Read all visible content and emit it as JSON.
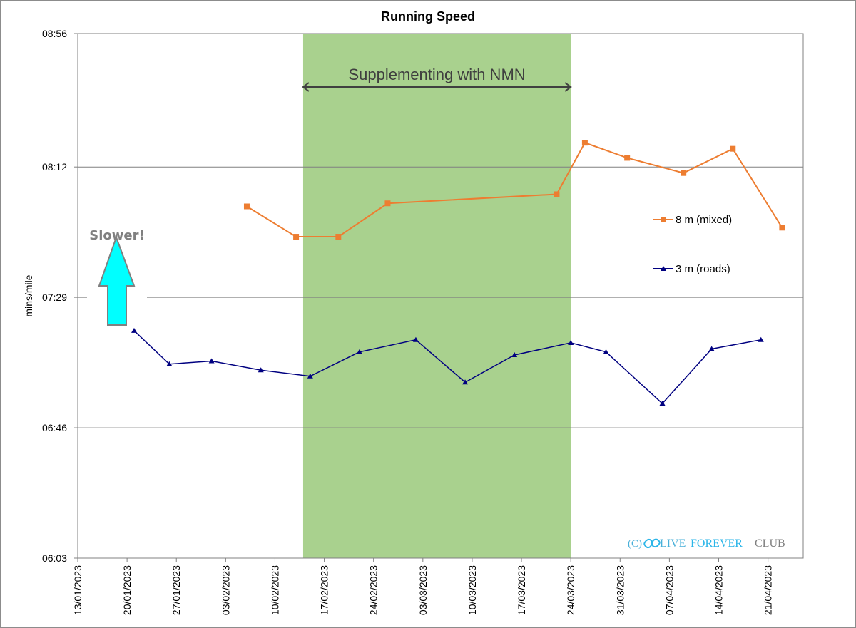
{
  "chart_data": {
    "type": "line",
    "title": "Running Speed",
    "ylabel": "mins/mile",
    "xlabel": "",
    "y_ticks": [
      "06:03",
      "06:46",
      "07:29",
      "08:12",
      "08:56"
    ],
    "ylim_seconds": [
      363,
      536
    ],
    "x_ticks": [
      "13/01/2023",
      "20/01/2023",
      "27/01/2023",
      "03/02/2023",
      "10/02/2023",
      "17/02/2023",
      "24/02/2023",
      "03/03/2023",
      "10/03/2023",
      "17/03/2023",
      "24/03/2023",
      "31/03/2023",
      "07/04/2023",
      "14/04/2023",
      "21/04/2023"
    ],
    "xlim": [
      "13/01/2023",
      "26/04/2023"
    ],
    "grid": "horizontal",
    "legend_position": "right",
    "shaded_region": {
      "start": "14/02/2023",
      "end": "24/03/2023",
      "label": "Supplementing with NMN",
      "color": "#a9d18e"
    },
    "series": [
      {
        "name": "8 m (mixed)",
        "color": "#ed7d31",
        "marker": "square",
        "points": [
          {
            "x": "06/02/2023",
            "y": "07:59"
          },
          {
            "x": "13/02/2023",
            "y": "07:49"
          },
          {
            "x": "19/02/2023",
            "y": "07:49"
          },
          {
            "x": "26/02/2023",
            "y": "08:00"
          },
          {
            "x": "22/03/2023",
            "y": "08:03"
          },
          {
            "x": "26/03/2023",
            "y": "08:20"
          },
          {
            "x": "01/04/2023",
            "y": "08:15"
          },
          {
            "x": "09/04/2023",
            "y": "08:10"
          },
          {
            "x": "16/04/2023",
            "y": "08:18"
          },
          {
            "x": "23/04/2023",
            "y": "07:52"
          }
        ]
      },
      {
        "name": "3 m (roads)",
        "color": "#000080",
        "marker": "triangle",
        "points": [
          {
            "x": "21/01/2023",
            "y": "07:18"
          },
          {
            "x": "26/01/2023",
            "y": "07:07"
          },
          {
            "x": "01/02/2023",
            "y": "07:08"
          },
          {
            "x": "08/02/2023",
            "y": "07:05"
          },
          {
            "x": "15/02/2023",
            "y": "07:03"
          },
          {
            "x": "22/02/2023",
            "y": "07:11"
          },
          {
            "x": "02/03/2023",
            "y": "07:15"
          },
          {
            "x": "09/03/2023",
            "y": "07:01"
          },
          {
            "x": "16/03/2023",
            "y": "07:10"
          },
          {
            "x": "24/03/2023",
            "y": "07:14"
          },
          {
            "x": "29/03/2023",
            "y": "07:11"
          },
          {
            "x": "06/04/2023",
            "y": "06:54"
          },
          {
            "x": "13/04/2023",
            "y": "07:12"
          },
          {
            "x": "20/04/2023",
            "y": "07:15"
          }
        ]
      }
    ],
    "annotations": [
      {
        "text": "Slower!",
        "type": "up-arrow",
        "color": "#00ffff"
      }
    ]
  },
  "watermark": {
    "prefix": "(C)",
    "logo_icon": "infinity-icon",
    "word1": "LIVE",
    "word2": "FOREVER",
    "word3": "CLUB"
  }
}
